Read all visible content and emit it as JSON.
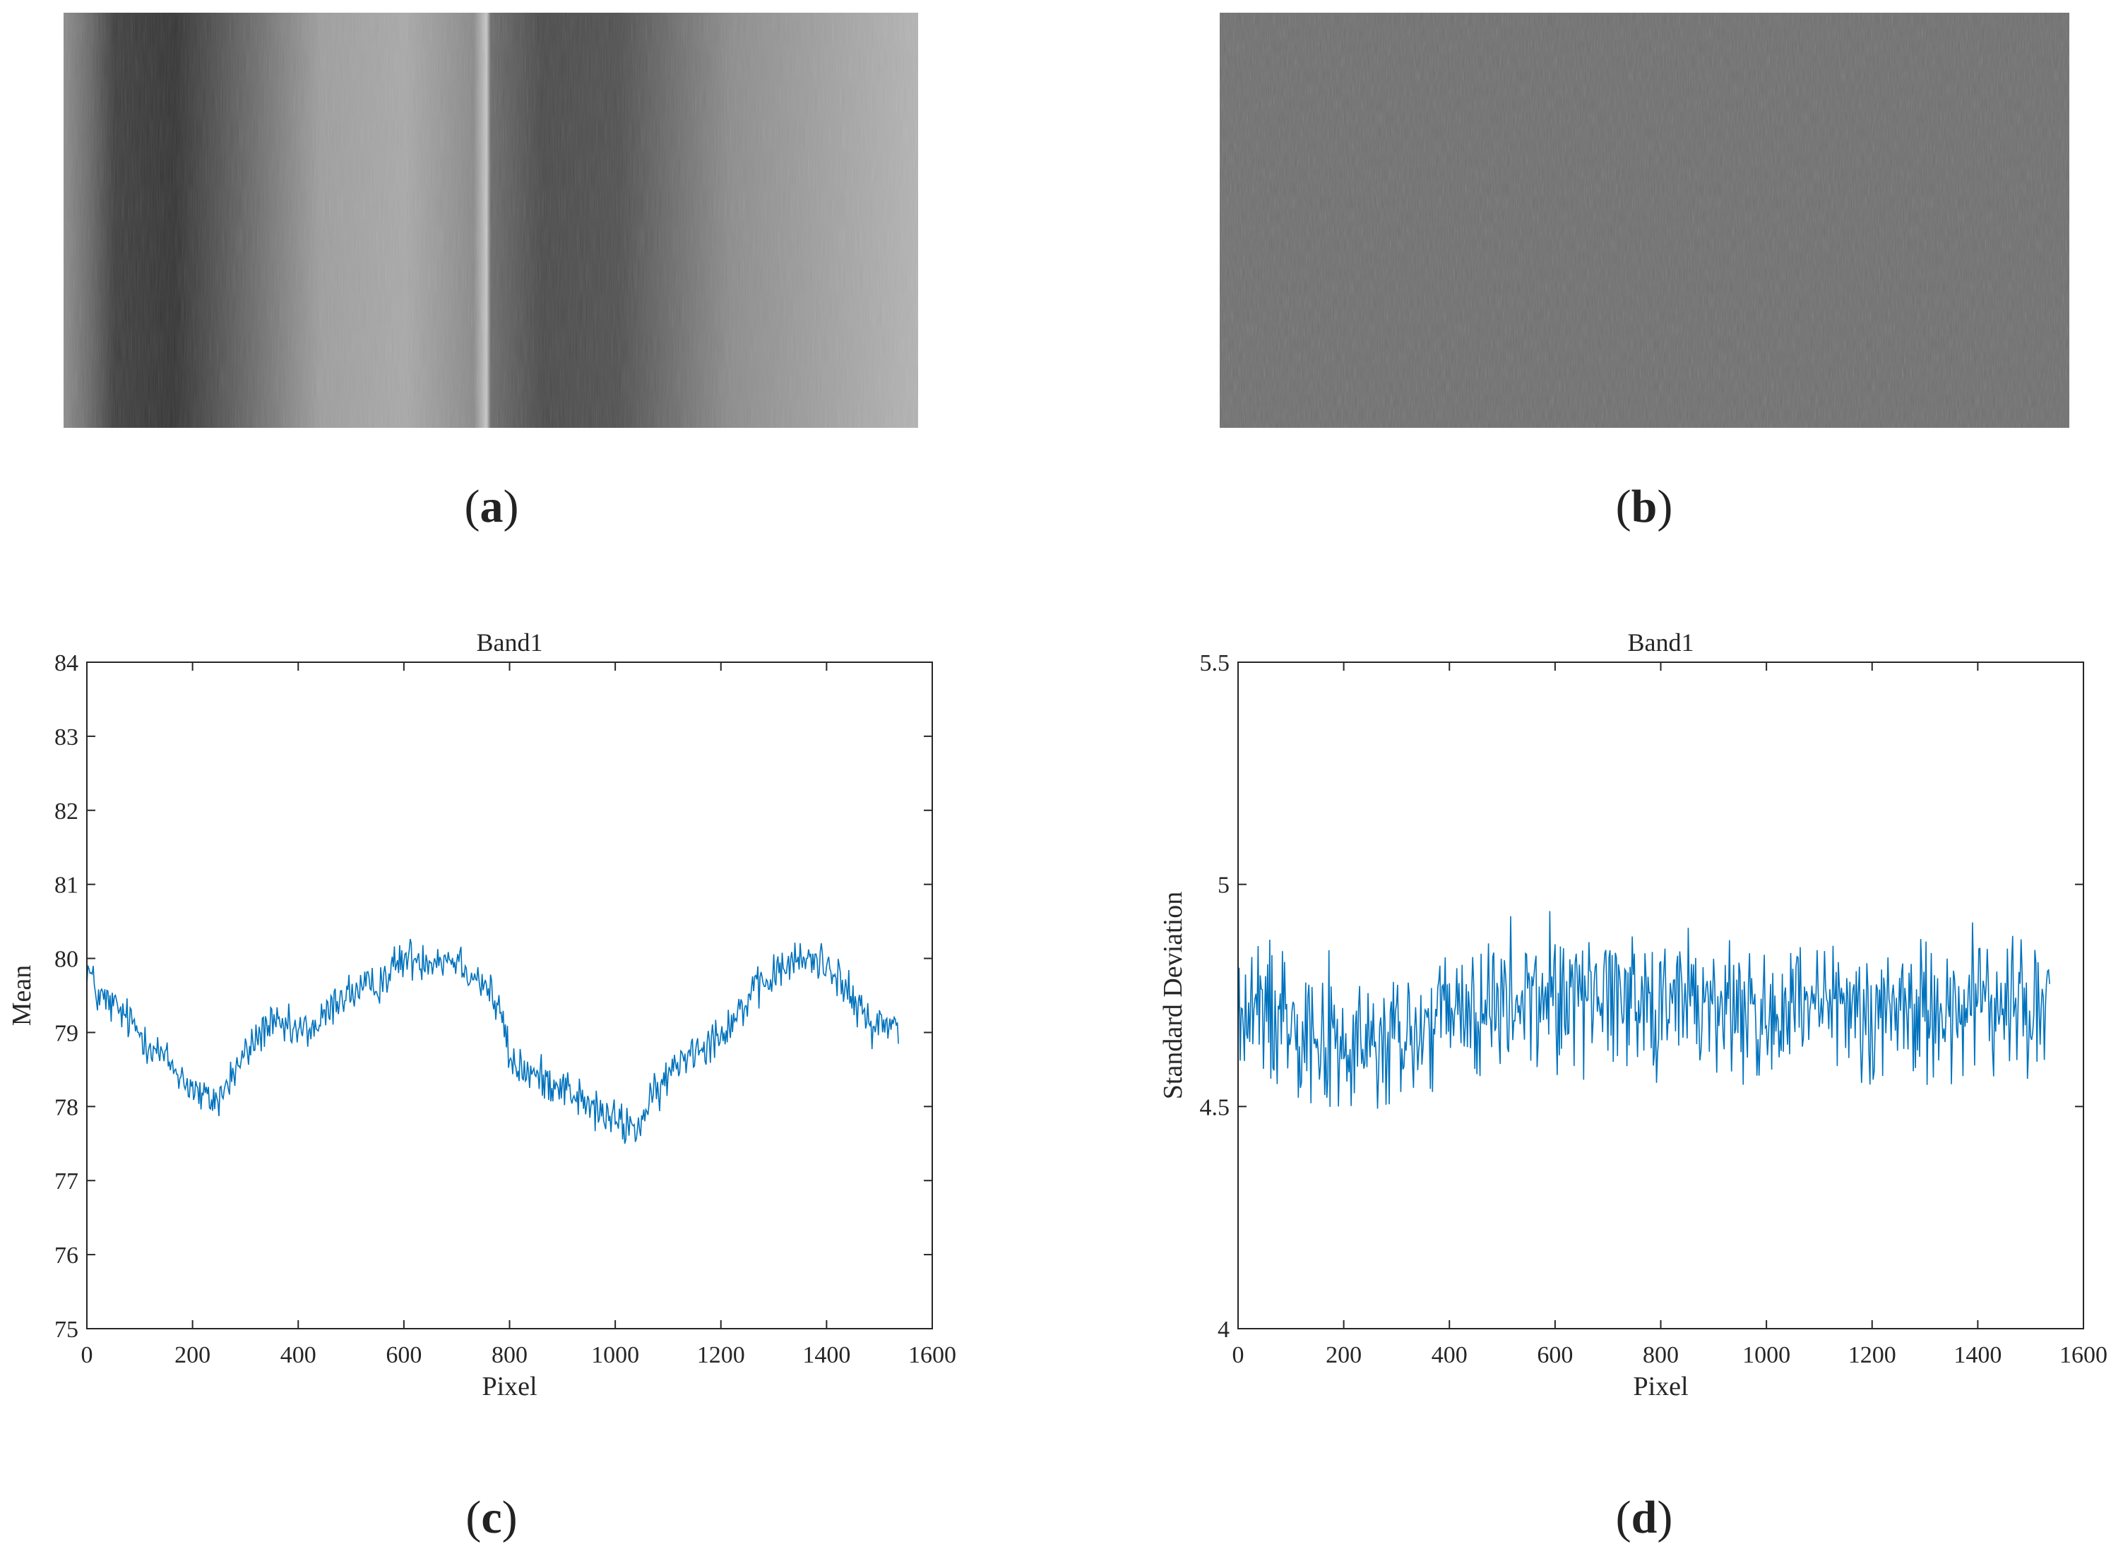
{
  "panels": {
    "a": {
      "label_open": "(",
      "label_letter": "a",
      "label_close": ")"
    },
    "b": {
      "label_open": "(",
      "label_letter": "b",
      "label_close": ")"
    },
    "c": {
      "label_open": "(",
      "label_letter": "c",
      "label_close": ")"
    },
    "d": {
      "label_open": "(",
      "label_letter": "d",
      "label_close": ")"
    }
  },
  "colors": {
    "series": "#0072bd",
    "axis": "#262626",
    "background": "#ffffff"
  },
  "chart_data": [
    {
      "type": "line",
      "title": "Band1",
      "xlabel": "Pixel",
      "ylabel": "Mean",
      "xlim": [
        0,
        1600
      ],
      "ylim": [
        75,
        84
      ],
      "xticks": [
        0,
        200,
        400,
        600,
        800,
        1000,
        1200,
        1400,
        1600
      ],
      "yticks": [
        75,
        76,
        77,
        78,
        79,
        80,
        81,
        82,
        83,
        84
      ],
      "grid": false,
      "series": [
        {
          "color": "#0072bd",
          "x": [
            0,
            20,
            60,
            100,
            140,
            180,
            220,
            250,
            290,
            340,
            400,
            440,
            480,
            540,
            600,
            650,
            700,
            760,
            790,
            800,
            850,
            900,
            950,
            1000,
            1040,
            1080,
            1130,
            1200,
            1260,
            1320,
            1370,
            1410,
            1450,
            1490,
            1536
          ],
          "y": [
            79.9,
            79.5,
            79.3,
            79.0,
            78.7,
            78.4,
            78.1,
            78.1,
            78.6,
            79.1,
            79.0,
            79.1,
            79.5,
            79.6,
            80.0,
            80.0,
            80.0,
            79.6,
            79.1,
            78.6,
            78.4,
            78.3,
            78.0,
            77.8,
            77.7,
            78.2,
            78.7,
            79.0,
            79.5,
            79.9,
            80.0,
            79.9,
            79.4,
            79.1,
            79.1
          ]
        }
      ]
    },
    {
      "type": "line",
      "title": "Band1",
      "xlabel": "Pixel",
      "ylabel": "Standard Deviation",
      "xlim": [
        0,
        1600
      ],
      "ylim": [
        4,
        5.5
      ],
      "xticks": [
        0,
        200,
        400,
        600,
        800,
        1000,
        1200,
        1400,
        1600
      ],
      "yticks": [
        4,
        4.5,
        5,
        5.5
      ],
      "grid": false,
      "series": [
        {
          "color": "#0072bd",
          "x": [
            0,
            100,
            200,
            300,
            400,
            500,
            600,
            700,
            800,
            900,
            1000,
            1100,
            1200,
            1300,
            1400,
            1536
          ],
          "y": [
            4.7,
            4.72,
            4.62,
            4.64,
            4.7,
            4.72,
            4.75,
            4.76,
            4.74,
            4.73,
            4.7,
            4.71,
            4.72,
            4.72,
            4.73,
            4.72
          ]
        }
      ]
    }
  ]
}
